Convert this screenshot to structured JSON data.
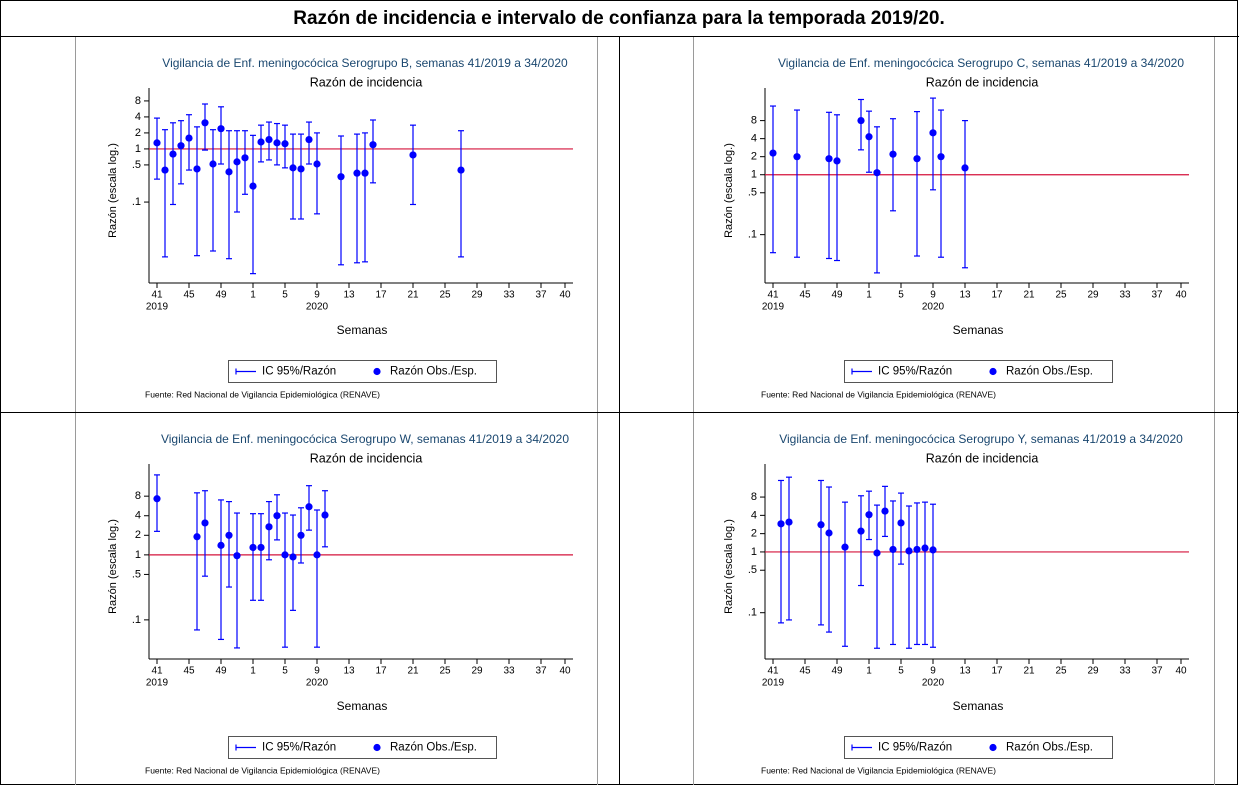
{
  "page_title": "Razón de incidencia e intervalo de confianza para la temporada 2019/20.",
  "chart_data": [
    {
      "type": "scatter",
      "title": "Vigilancia de Enf. meningocócica Serogrupo B, semanas 41/2019 a 34/2020",
      "subtitle": "Razón de incidencia",
      "x_label": "Semanas",
      "y_label": "Razón (escala log.)",
      "source": "Fuente: Red Nacional de Vigilancia Epidemiológica (RENAVE)",
      "log_y": true,
      "xlim": [
        -1,
        52
      ],
      "xticks": [
        {
          "value": 0,
          "label": "41"
        },
        {
          "value": 4,
          "label": "45"
        },
        {
          "value": 8,
          "label": "49"
        },
        {
          "value": 12,
          "label": "1"
        },
        {
          "value": 16,
          "label": "5"
        },
        {
          "value": 20,
          "label": "9"
        },
        {
          "value": 24,
          "label": "13"
        },
        {
          "value": 28,
          "label": "17"
        },
        {
          "value": 32,
          "label": "21"
        },
        {
          "value": 36,
          "label": "25"
        },
        {
          "value": 40,
          "label": "29"
        },
        {
          "value": 44,
          "label": "33"
        },
        {
          "value": 48,
          "label": "37"
        },
        {
          "value": 51,
          "label": "40"
        }
      ],
      "year_labels": [
        {
          "value": 0,
          "label": "2019"
        },
        {
          "value": 20,
          "label": "2020"
        }
      ],
      "ylim": [
        0.003,
        14
      ],
      "yticks": [
        {
          "value": 0.1,
          "label": ".1"
        },
        {
          "value": 0.5,
          "label": ".5"
        },
        1,
        2,
        4,
        8
      ],
      "reference_line": {
        "value": 1,
        "color": "#d4133b"
      },
      "x": [
        0,
        1,
        2,
        3,
        4,
        5,
        6,
        7,
        8,
        9,
        10,
        11,
        12,
        13,
        14,
        15,
        16,
        17,
        18,
        19,
        20,
        23,
        25,
        26,
        27,
        32,
        38
      ],
      "series": [
        {
          "name": "Razón Obs./Esp.",
          "color": "#0000ff",
          "values": [
            1.3,
            0.4,
            0.8,
            1.15,
            1.6,
            0.42,
            3.1,
            0.52,
            2.4,
            0.37,
            0.57,
            0.68,
            0.2,
            1.35,
            1.5,
            1.3,
            1.25,
            0.44,
            0.42,
            1.5,
            0.52,
            0.3,
            0.35,
            0.35,
            1.2,
            0.77,
            0.4
          ]
        }
      ],
      "ci": {
        "name": "IC 95%/Razón",
        "color": "#0000ff",
        "lower": [
          0.27,
          0.0093,
          0.09,
          0.22,
          0.4,
          0.0098,
          0.95,
          0.012,
          0.52,
          0.0086,
          0.065,
          0.14,
          0.0045,
          0.57,
          0.62,
          0.5,
          0.44,
          0.048,
          0.048,
          0.52,
          0.06,
          0.0066,
          0.0072,
          0.0075,
          0.23,
          0.09,
          0.0093
        ],
        "upper": [
          3.8,
          2.3,
          3.1,
          3.4,
          4.4,
          2.6,
          7,
          2.3,
          6.2,
          2.2,
          2.2,
          2.2,
          1.8,
          2.8,
          3.2,
          3,
          2.8,
          1.9,
          1.9,
          3.2,
          2,
          1.75,
          1.9,
          2,
          3.5,
          2.8,
          2.2
        ]
      }
    },
    {
      "type": "scatter",
      "title": "Vigilancia de Enf. meningocócica Serogrupo C, semanas 41/2019 a 34/2020",
      "subtitle": "Razón de incidencia",
      "x_label": "Semanas",
      "y_label": "Razón (escala log.)",
      "source": "Fuente: Red Nacional de Vigilancia Epidemiológica (RENAVE)",
      "log_y": true,
      "xlim": [
        -1,
        52
      ],
      "xticks": [
        {
          "value": 0,
          "label": "41"
        },
        {
          "value": 4,
          "label": "45"
        },
        {
          "value": 8,
          "label": "49"
        },
        {
          "value": 12,
          "label": "1"
        },
        {
          "value": 16,
          "label": "5"
        },
        {
          "value": 20,
          "label": "9"
        },
        {
          "value": 24,
          "label": "13"
        },
        {
          "value": 28,
          "label": "17"
        },
        {
          "value": 32,
          "label": "21"
        },
        {
          "value": 36,
          "label": "25"
        },
        {
          "value": 40,
          "label": "29"
        },
        {
          "value": 44,
          "label": "33"
        },
        {
          "value": 48,
          "label": "37"
        },
        {
          "value": 51,
          "label": "40"
        }
      ],
      "year_labels": [
        {
          "value": 0,
          "label": "2019"
        },
        {
          "value": 20,
          "label": "2020"
        }
      ],
      "ylim": [
        0.0156,
        28
      ],
      "yticks": [
        {
          "value": 0.1,
          "label": ".1"
        },
        {
          "value": 0.5,
          "label": ".5"
        },
        1,
        2,
        4,
        8
      ],
      "reference_line": {
        "value": 1,
        "color": "#d4133b"
      },
      "x": [
        0,
        3,
        7,
        8,
        11,
        12,
        13,
        15,
        18,
        20,
        21,
        24
      ],
      "series": [
        {
          "name": "Razón Obs./Esp.",
          "color": "#0000ff",
          "values": [
            2.3,
            2.0,
            1.85,
            1.7,
            8,
            4.3,
            1.08,
            2.2,
            1.85,
            5,
            2.0,
            1.3
          ]
        }
      ],
      "ci": {
        "name": "IC 95%/Razón",
        "color": "#0000ff",
        "lower": [
          0.05,
          0.042,
          0.04,
          0.037,
          2.6,
          1.1,
          0.023,
          0.25,
          0.044,
          0.56,
          0.042,
          0.028
        ],
        "upper": [
          14,
          12,
          11,
          10,
          18,
          11.5,
          6.3,
          8.6,
          11.3,
          19,
          12,
          8
        ]
      }
    },
    {
      "type": "scatter",
      "title": "Vigilancia de Enf. meningocócica Serogrupo W, semanas 41/2019 a 34/2020",
      "subtitle": "Razón de incidencia",
      "x_label": "Semanas",
      "y_label": "Razón (escala log.)",
      "source": "Fuente: Red Nacional de Vigilancia Epidemiológica (RENAVE)",
      "log_y": true,
      "xlim": [
        -1,
        52
      ],
      "xticks": [
        {
          "value": 0,
          "label": "41"
        },
        {
          "value": 4,
          "label": "45"
        },
        {
          "value": 8,
          "label": "49"
        },
        {
          "value": 12,
          "label": "1"
        },
        {
          "value": 16,
          "label": "5"
        },
        {
          "value": 20,
          "label": "9"
        },
        {
          "value": 24,
          "label": "13"
        },
        {
          "value": 28,
          "label": "17"
        },
        {
          "value": 32,
          "label": "21"
        },
        {
          "value": 36,
          "label": "25"
        },
        {
          "value": 40,
          "label": "29"
        },
        {
          "value": 44,
          "label": "33"
        },
        {
          "value": 48,
          "label": "37"
        },
        {
          "value": 51,
          "label": "40"
        }
      ],
      "year_labels": [
        {
          "value": 0,
          "label": "2019"
        },
        {
          "value": 20,
          "label": "2020"
        }
      ],
      "ylim": [
        0.025,
        25
      ],
      "yticks": [
        {
          "value": 0.1,
          "label": ".1"
        },
        {
          "value": 0.5,
          "label": ".5"
        },
        1,
        2,
        4,
        8
      ],
      "reference_line": {
        "value": 1,
        "color": "#d4133b"
      },
      "x": [
        0,
        5,
        6,
        8,
        9,
        10,
        12,
        13,
        14,
        15,
        16,
        17,
        18,
        19,
        20,
        21
      ],
      "series": [
        {
          "name": "Razón Obs./Esp.",
          "color": "#0000ff",
          "values": [
            7.3,
            1.9,
            3.1,
            1.4,
            2.0,
            0.97,
            1.3,
            1.3,
            2.7,
            4.0,
            1.0,
            0.93,
            2.0,
            5.5,
            1.0,
            4.1
          ]
        }
      ],
      "ci": {
        "name": "IC 95%/Razón",
        "color": "#0000ff",
        "lower": [
          2.3,
          0.07,
          0.47,
          0.05,
          0.32,
          0.037,
          0.2,
          0.2,
          0.84,
          1.7,
          0.038,
          0.14,
          0.75,
          2.4,
          0.038,
          1.33
        ],
        "upper": [
          17,
          9,
          9.7,
          7,
          6.6,
          4.4,
          4.3,
          4.3,
          6.6,
          8.4,
          4.4,
          4.1,
          5.3,
          11.6,
          4.9,
          9.7
        ]
      }
    },
    {
      "type": "scatter",
      "title": "Vigilancia de Enf. meningocócica Serogrupo Y, semanas 41/2019 a 34/2020",
      "subtitle": "Razón de incidencia",
      "x_label": "Semanas",
      "y_label": "Razón (escala log.)",
      "source": "Fuente: Red Nacional de Vigilancia Epidemiológica (RENAVE)",
      "log_y": true,
      "xlim": [
        -1,
        52
      ],
      "xticks": [
        {
          "value": 0,
          "label": "41"
        },
        {
          "value": 4,
          "label": "45"
        },
        {
          "value": 8,
          "label": "49"
        },
        {
          "value": 12,
          "label": "1"
        },
        {
          "value": 16,
          "label": "5"
        },
        {
          "value": 20,
          "label": "9"
        },
        {
          "value": 24,
          "label": "13"
        },
        {
          "value": 28,
          "label": "17"
        },
        {
          "value": 32,
          "label": "21"
        },
        {
          "value": 36,
          "label": "25"
        },
        {
          "value": 40,
          "label": "29"
        },
        {
          "value": 44,
          "label": "33"
        },
        {
          "value": 48,
          "label": "37"
        },
        {
          "value": 51,
          "label": "40"
        }
      ],
      "year_labels": [
        {
          "value": 0,
          "label": "2019"
        },
        {
          "value": 20,
          "label": "2020"
        }
      ],
      "ylim": [
        0.0173,
        28
      ],
      "yticks": [
        {
          "value": 0.1,
          "label": ".1"
        },
        {
          "value": 0.5,
          "label": ".5"
        },
        1,
        2,
        4,
        8
      ],
      "reference_line": {
        "value": 1,
        "color": "#d4133b"
      },
      "x": [
        1,
        2,
        6,
        7,
        9,
        11,
        12,
        13,
        14,
        15,
        16,
        17,
        18,
        19,
        20
      ],
      "series": [
        {
          "name": "Razón Obs./Esp.",
          "color": "#0000ff",
          "values": [
            2.9,
            3.1,
            2.8,
            2.05,
            1.2,
            2.2,
            4.1,
            0.96,
            4.7,
            1.1,
            3.0,
            1.04,
            1.1,
            1.16,
            1.08
          ]
        }
      ],
      "ci": {
        "name": "IC 95%/Razón",
        "color": "#0000ff",
        "lower": [
          0.068,
          0.076,
          0.063,
          0.048,
          0.028,
          0.28,
          1.6,
          0.026,
          1.8,
          0.03,
          0.63,
          0.026,
          0.03,
          0.03,
          0.027
        ],
        "upper": [
          15,
          17,
          15,
          11.7,
          6.6,
          8.4,
          10,
          5.9,
          12,
          6.9,
          9.3,
          5.7,
          6.4,
          6.6,
          6.1
        ]
      }
    }
  ]
}
